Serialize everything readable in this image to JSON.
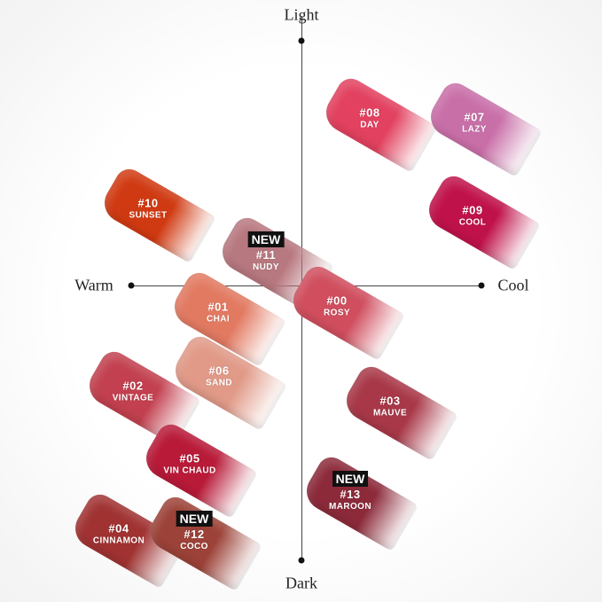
{
  "axes": {
    "top": "Light",
    "bottom": "Dark",
    "left": "Warm",
    "right": "Cool"
  },
  "new_badge": "NEW",
  "shades": [
    {
      "num": "#08",
      "name": "DAY",
      "color": "#e2415f",
      "new": false
    },
    {
      "num": "#07",
      "name": "LAZY",
      "color": "#c96fa8",
      "new": false
    },
    {
      "num": "#10",
      "name": "SUNSET",
      "color": "#d03a12",
      "new": false
    },
    {
      "num": "#09",
      "name": "COOL",
      "color": "#c0124a",
      "new": false
    },
    {
      "num": "#11",
      "name": "NUDY",
      "color": "#b7787f",
      "new": true
    },
    {
      "num": "#01",
      "name": "CHAI",
      "color": "#e27a62",
      "new": false
    },
    {
      "num": "#00",
      "name": "ROSY",
      "color": "#d04e5e",
      "new": false
    },
    {
      "num": "#06",
      "name": "SAND",
      "color": "#e19a88",
      "new": false
    },
    {
      "num": "#02",
      "name": "VINTAGE",
      "color": "#c2404f",
      "new": false
    },
    {
      "num": "#03",
      "name": "MAUVE",
      "color": "#a83848",
      "new": false
    },
    {
      "num": "#05",
      "name": "VIN CHAUD",
      "color": "#b81a38",
      "new": false
    },
    {
      "num": "#13",
      "name": "MAROON",
      "color": "#8c2a3a",
      "new": true
    },
    {
      "num": "#04",
      "name": "CINNAMON",
      "color": "#a03232",
      "new": false
    },
    {
      "num": "#12",
      "name": "COCO",
      "color": "#9c4238",
      "new": true
    }
  ]
}
